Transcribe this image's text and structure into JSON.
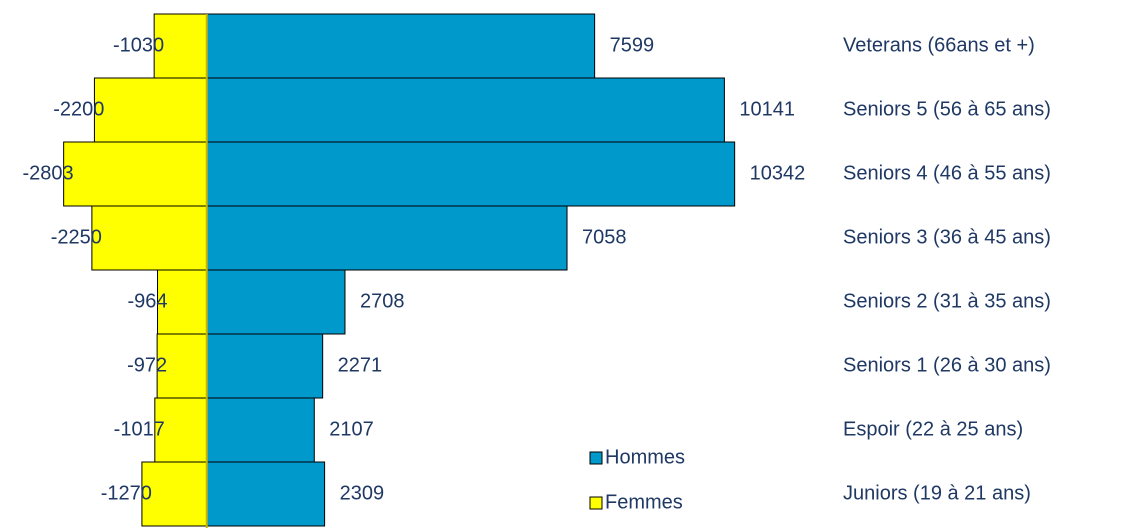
{
  "chart_data": {
    "type": "pyramid",
    "categories": [
      "Veterans (66ans et +)",
      "Seniors 5 (56 à 65 ans)",
      "Seniors 4 (46 à 55 ans)",
      "Seniors 3 (36 à 45 ans)",
      "Seniors 2 (31 à 35 ans)",
      "Seniors 1 (26 à 30 ans)",
      "Espoir (22 à 25 ans)",
      "Juniors (19 à 21 ans)"
    ],
    "series": [
      {
        "name": "Hommes",
        "color": "#0099cc",
        "values": [
          7599,
          10141,
          10342,
          7058,
          2708,
          2271,
          2107,
          2309
        ]
      },
      {
        "name": "Femmes",
        "color": "#ffff00",
        "values": [
          -1030,
          -2200,
          -2803,
          -2250,
          -964,
          -972,
          -1017,
          -1270
        ]
      }
    ],
    "xlim": [
      -4050,
      17930
    ],
    "legend": "lower-center"
  }
}
